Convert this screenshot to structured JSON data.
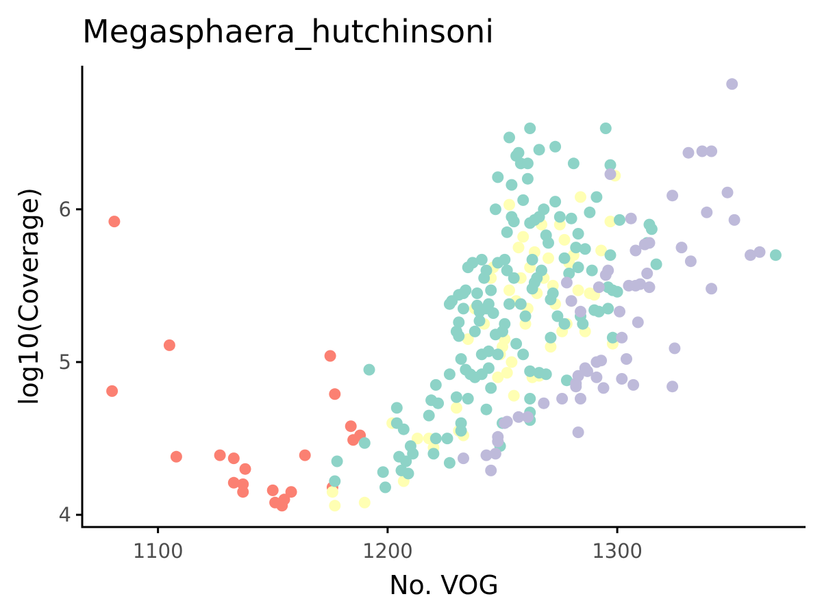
{
  "chart_data": {
    "type": "scatter",
    "title": "Megasphaera_hutchinsoni",
    "xlabel": "No. VOG",
    "ylabel": "log10(Coverage)",
    "xlim": [
      1067,
      1382
    ],
    "ylim": [
      3.92,
      6.94
    ],
    "xticks": [
      1100,
      1200,
      1300
    ],
    "yticks": [
      4,
      5,
      6
    ],
    "grid": false,
    "legend": "none",
    "series": [
      {
        "color": "#fb8072",
        "points": [
          [
            1081,
            5.92
          ],
          [
            1080,
            4.81
          ],
          [
            1105,
            5.11
          ],
          [
            1108,
            4.38
          ],
          [
            1127,
            4.39
          ],
          [
            1133,
            4.37
          ],
          [
            1133,
            4.21
          ],
          [
            1137,
            4.2
          ],
          [
            1137,
            4.15
          ],
          [
            1138,
            4.3
          ],
          [
            1150,
            4.16
          ],
          [
            1151,
            4.08
          ],
          [
            1154,
            4.06
          ],
          [
            1155,
            4.1
          ],
          [
            1158,
            4.15
          ],
          [
            1164,
            4.39
          ],
          [
            1175,
            5.04
          ],
          [
            1176,
            4.18
          ],
          [
            1177,
            4.79
          ],
          [
            1184,
            4.58
          ],
          [
            1185,
            4.49
          ],
          [
            1188,
            4.52
          ]
        ]
      },
      {
        "color": "#ffffb3",
        "points": [
          [
            1176,
            4.15
          ],
          [
            1177,
            4.06
          ],
          [
            1190,
            4.08
          ],
          [
            1202,
            4.6
          ],
          [
            1207,
            4.22
          ],
          [
            1213,
            4.5
          ],
          [
            1218,
            4.5
          ],
          [
            1220,
            4.44
          ],
          [
            1230,
            4.7
          ],
          [
            1231,
            4.55
          ],
          [
            1233,
            4.52
          ],
          [
            1235,
            5.15
          ],
          [
            1238,
            5.35
          ],
          [
            1242,
            5.25
          ],
          [
            1245,
            5.55
          ],
          [
            1246,
            5.62
          ],
          [
            1248,
            4.9
          ],
          [
            1249,
            5.05
          ],
          [
            1250,
            5.1
          ],
          [
            1251,
            5.15
          ],
          [
            1252,
            4.93
          ],
          [
            1253,
            5.47
          ],
          [
            1253,
            6.03
          ],
          [
            1254,
            5.0
          ],
          [
            1255,
            4.78
          ],
          [
            1256,
            5.4
          ],
          [
            1257,
            5.75
          ],
          [
            1258,
            5.55
          ],
          [
            1259,
            5.82
          ],
          [
            1260,
            5.25
          ],
          [
            1261,
            5.35
          ],
          [
            1262,
            5.62
          ],
          [
            1263,
            4.9
          ],
          [
            1264,
            5.72
          ],
          [
            1265,
            5.45
          ],
          [
            1266,
            4.91
          ],
          [
            1267,
            5.9
          ],
          [
            1268,
            5.55
          ],
          [
            1270,
            5.68
          ],
          [
            1271,
            5.1
          ],
          [
            1272,
            5.5
          ],
          [
            1273,
            5.38
          ],
          [
            1275,
            5.9
          ],
          [
            1276,
            5.2
          ],
          [
            1277,
            5.8
          ],
          [
            1278,
            5.25
          ],
          [
            1279,
            5.65
          ],
          [
            1280,
            5.4
          ],
          [
            1281,
            5.7
          ],
          [
            1283,
            5.47
          ],
          [
            1284,
            6.08
          ],
          [
            1286,
            5.2
          ],
          [
            1288,
            5.45
          ],
          [
            1290,
            5.44
          ],
          [
            1293,
            5.73
          ],
          [
            1297,
            5.92
          ],
          [
            1298,
            5.12
          ],
          [
            1299,
            6.22
          ]
        ]
      },
      {
        "color": "#8dd3c7",
        "points": [
          [
            1177,
            4.22
          ],
          [
            1178,
            4.35
          ],
          [
            1190,
            4.47
          ],
          [
            1192,
            4.95
          ],
          [
            1198,
            4.28
          ],
          [
            1199,
            4.18
          ],
          [
            1204,
            4.7
          ],
          [
            1204,
            4.6
          ],
          [
            1205,
            4.38
          ],
          [
            1206,
            4.29
          ],
          [
            1207,
            4.56
          ],
          [
            1208,
            4.35
          ],
          [
            1209,
            4.27
          ],
          [
            1210,
            4.45
          ],
          [
            1211,
            4.4
          ],
          [
            1218,
            4.65
          ],
          [
            1219,
            4.75
          ],
          [
            1220,
            4.4
          ],
          [
            1221,
            4.5
          ],
          [
            1221,
            4.85
          ],
          [
            1222,
            4.73
          ],
          [
            1226,
            4.5
          ],
          [
            1227,
            4.34
          ],
          [
            1227,
            4.92
          ],
          [
            1227,
            5.38
          ],
          [
            1228,
            5.4
          ],
          [
            1230,
            4.77
          ],
          [
            1230,
            5.2
          ],
          [
            1231,
            5.17
          ],
          [
            1231,
            5.26
          ],
          [
            1231,
            5.44
          ],
          [
            1232,
            5.02
          ],
          [
            1232,
            4.6
          ],
          [
            1232,
            4.55
          ],
          [
            1233,
            5.35
          ],
          [
            1233,
            5.45
          ],
          [
            1234,
            5.47
          ],
          [
            1234,
            4.95
          ],
          [
            1235,
            4.76
          ],
          [
            1235,
            5.62
          ],
          [
            1236,
            4.92
          ],
          [
            1237,
            5.65
          ],
          [
            1238,
            5.2
          ],
          [
            1238,
            4.9
          ],
          [
            1239,
            5.37
          ],
          [
            1239,
            5.45
          ],
          [
            1240,
            5.27
          ],
          [
            1240,
            5.33
          ],
          [
            1241,
            5.67
          ],
          [
            1241,
            5.05
          ],
          [
            1241,
            4.92
          ],
          [
            1242,
            5.55
          ],
          [
            1243,
            5.35
          ],
          [
            1243,
            5.6
          ],
          [
            1243,
            4.69
          ],
          [
            1244,
            5.38
          ],
          [
            1244,
            4.96
          ],
          [
            1244,
            5.07
          ],
          [
            1245,
            4.83
          ],
          [
            1245,
            5.47
          ],
          [
            1246,
            5.32
          ],
          [
            1247,
            5.18
          ],
          [
            1247,
            6.0
          ],
          [
            1248,
            5.05
          ],
          [
            1248,
            5.65
          ],
          [
            1248,
            6.21
          ],
          [
            1249,
            4.45
          ],
          [
            1250,
            5.2
          ],
          [
            1250,
            4.6
          ],
          [
            1251,
            5.25
          ],
          [
            1251,
            5.67
          ],
          [
            1252,
            5.6
          ],
          [
            1252,
            5.85
          ],
          [
            1253,
            6.47
          ],
          [
            1253,
            5.38
          ],
          [
            1254,
            5.95
          ],
          [
            1254,
            6.16
          ],
          [
            1255,
            5.92
          ],
          [
            1255,
            5.55
          ],
          [
            1256,
            5.12
          ],
          [
            1256,
            6.35
          ],
          [
            1257,
            6.37
          ],
          [
            1258,
            5.38
          ],
          [
            1258,
            6.3
          ],
          [
            1259,
            6.06
          ],
          [
            1259,
            5.05
          ],
          [
            1260,
            5.3
          ],
          [
            1261,
            6.2
          ],
          [
            1261,
            6.3
          ],
          [
            1262,
            6.53
          ],
          [
            1262,
            5.91
          ],
          [
            1262,
            4.62
          ],
          [
            1262,
            4.67
          ],
          [
            1262,
            4.76
          ],
          [
            1262,
            4.94
          ],
          [
            1263,
            5.48
          ],
          [
            1263,
            5.67
          ],
          [
            1264,
            5.93
          ],
          [
            1264,
            5.52
          ],
          [
            1265,
            5.55
          ],
          [
            1266,
            6.39
          ],
          [
            1266,
            5.95
          ],
          [
            1266,
            4.93
          ],
          [
            1267,
            5.6
          ],
          [
            1268,
            6.0
          ],
          [
            1269,
            5.83
          ],
          [
            1269,
            4.92
          ],
          [
            1270,
            5.78
          ],
          [
            1271,
            5.16
          ],
          [
            1271,
            5.41
          ],
          [
            1272,
            5.45
          ],
          [
            1273,
            6.05
          ],
          [
            1273,
            6.41
          ],
          [
            1274,
            5.3
          ],
          [
            1275,
            5.95
          ],
          [
            1277,
            5.68
          ],
          [
            1277,
            5.25
          ],
          [
            1278,
            4.88
          ],
          [
            1279,
            5.58
          ],
          [
            1280,
            5.94
          ],
          [
            1281,
            6.3
          ],
          [
            1282,
            5.75
          ],
          [
            1283,
            5.84
          ],
          [
            1283,
            5.62
          ],
          [
            1284,
            5.3
          ],
          [
            1285,
            5.25
          ],
          [
            1286,
            5.74
          ],
          [
            1288,
            5.98
          ],
          [
            1289,
            5.6
          ],
          [
            1290,
            5.34
          ],
          [
            1291,
            6.08
          ],
          [
            1292,
            5.33
          ],
          [
            1295,
            6.53
          ],
          [
            1296,
            5.49
          ],
          [
            1296,
            5.35
          ],
          [
            1297,
            6.29
          ],
          [
            1297,
            5.7
          ],
          [
            1298,
            5.16
          ],
          [
            1298,
            5.47
          ],
          [
            1300,
            5.46
          ],
          [
            1301,
            5.93
          ],
          [
            1313,
            5.78
          ],
          [
            1314,
            5.9
          ],
          [
            1315,
            5.87
          ],
          [
            1317,
            5.64
          ],
          [
            1369,
            5.7
          ]
        ]
      },
      {
        "color": "#bebada",
        "points": [
          [
            1233,
            4.37
          ],
          [
            1243,
            4.39
          ],
          [
            1245,
            4.29
          ],
          [
            1247,
            4.4
          ],
          [
            1248,
            4.51
          ],
          [
            1248,
            4.48
          ],
          [
            1251,
            4.6
          ],
          [
            1252,
            4.61
          ],
          [
            1257,
            4.64
          ],
          [
            1261,
            4.64
          ],
          [
            1268,
            4.73
          ],
          [
            1276,
            4.76
          ],
          [
            1278,
            5.52
          ],
          [
            1280,
            5.4
          ],
          [
            1282,
            4.86
          ],
          [
            1282,
            4.84
          ],
          [
            1283,
            4.54
          ],
          [
            1283,
            4.91
          ],
          [
            1284,
            5.33
          ],
          [
            1284,
            4.76
          ],
          [
            1286,
            4.96
          ],
          [
            1287,
            4.94
          ],
          [
            1291,
            4.9
          ],
          [
            1291,
            5.0
          ],
          [
            1292,
            5.49
          ],
          [
            1293,
            5.01
          ],
          [
            1294,
            4.83
          ],
          [
            1295,
            5.57
          ],
          [
            1296,
            5.6
          ],
          [
            1297,
            6.23
          ],
          [
            1301,
            5.33
          ],
          [
            1302,
            5.16
          ],
          [
            1302,
            4.89
          ],
          [
            1304,
            5.02
          ],
          [
            1305,
            5.5
          ],
          [
            1306,
            5.94
          ],
          [
            1307,
            4.85
          ],
          [
            1308,
            5.73
          ],
          [
            1308,
            5.5
          ],
          [
            1309,
            5.26
          ],
          [
            1310,
            5.51
          ],
          [
            1312,
            5.77
          ],
          [
            1313,
            5.58
          ],
          [
            1314,
            5.78
          ],
          [
            1314,
            5.49
          ],
          [
            1324,
            6.09
          ],
          [
            1324,
            4.84
          ],
          [
            1325,
            5.09
          ],
          [
            1328,
            5.75
          ],
          [
            1331,
            6.37
          ],
          [
            1332,
            5.66
          ],
          [
            1337,
            6.38
          ],
          [
            1339,
            5.98
          ],
          [
            1341,
            6.38
          ],
          [
            1341,
            5.48
          ],
          [
            1348,
            6.11
          ],
          [
            1350,
            6.82
          ],
          [
            1351,
            5.93
          ],
          [
            1358,
            5.7
          ],
          [
            1362,
            5.72
          ]
        ]
      }
    ]
  }
}
